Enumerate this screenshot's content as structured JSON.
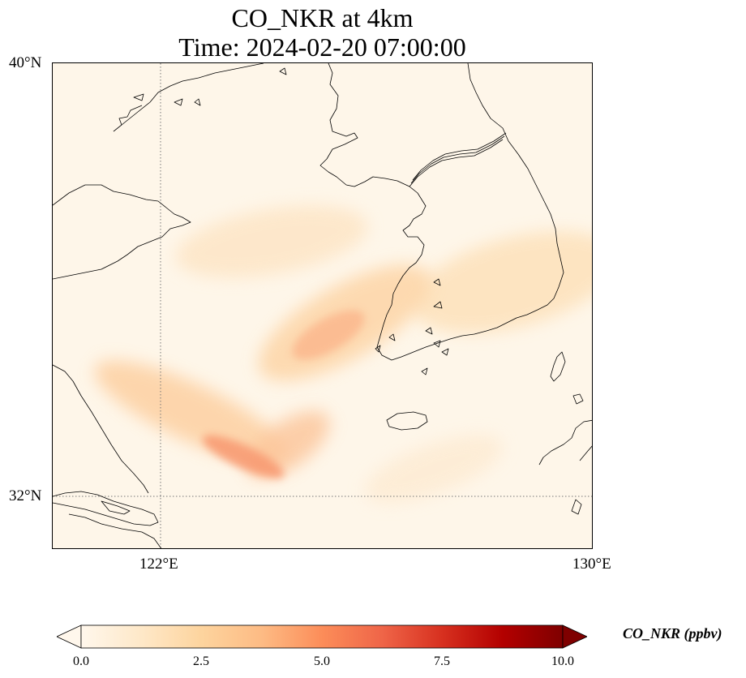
{
  "title": {
    "line1": "CO_NKR at 4km",
    "line2": "Time: 2024-02-20 07:00:00"
  },
  "axes": {
    "lat_labels": [
      {
        "value": 40,
        "text": "40°N"
      },
      {
        "value": 32,
        "text": "32°N"
      }
    ],
    "lon_labels": [
      {
        "value": 122,
        "text": "122°E"
      },
      {
        "value": 130,
        "text": "130°E"
      }
    ],
    "lon_range": [
      120,
      130
    ],
    "lat_range": [
      31,
      40
    ],
    "gridlines": {
      "lon": [
        122
      ],
      "lat": [
        32
      ],
      "style": "dotted"
    }
  },
  "colorbar": {
    "label": "CO_NKR (ppbv)",
    "ticks": [
      "0.0",
      "2.5",
      "5.0",
      "7.5",
      "10.0"
    ],
    "tick_values": [
      0,
      2.5,
      5,
      7.5,
      10
    ],
    "range": [
      0,
      10
    ],
    "extend": "both",
    "colormap": "OrRd",
    "stops": [
      "#fff7ec",
      "#fee8c8",
      "#fdd49e",
      "#fdbb84",
      "#fc8d59",
      "#ef6548",
      "#d7301f",
      "#b30000",
      "#7f0000"
    ]
  },
  "colors": {
    "background": "#fef6e9",
    "coastline": "#000000",
    "gridline": "#777777"
  }
}
